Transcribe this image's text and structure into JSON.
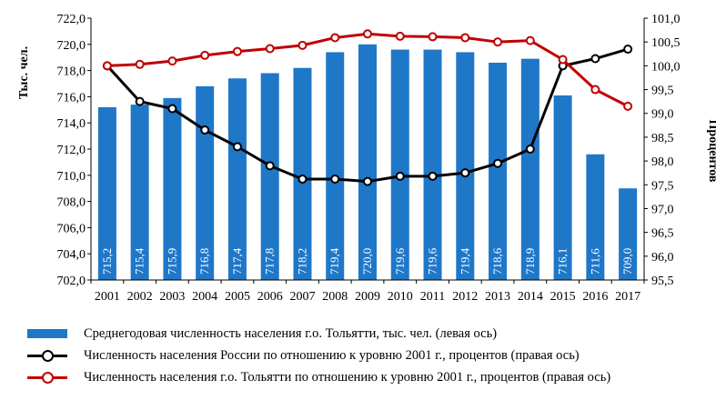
{
  "chart_data": {
    "type": "bar+line",
    "categories": [
      "2001",
      "2002",
      "2003",
      "2004",
      "2005",
      "2006",
      "2007",
      "2008",
      "2009",
      "2010",
      "2011",
      "2012",
      "2013",
      "2014",
      "2015",
      "2016",
      "2017"
    ],
    "bar_series": {
      "name": "Среднегодовая численность населения г.о. Тольятти, тыс. чел. (левая ось)",
      "values": [
        715.2,
        715.4,
        715.9,
        716.8,
        717.4,
        717.8,
        718.2,
        719.4,
        720.0,
        719.6,
        719.6,
        719.4,
        718.6,
        718.9,
        716.1,
        711.6,
        709.0
      ],
      "labels": [
        "715,2",
        "715,4",
        "715,9",
        "716,8",
        "717,4",
        "717,8",
        "718,2",
        "719,4",
        "720,0",
        "719,6",
        "719,6",
        "719,4",
        "718,6",
        "718,9",
        "716,1",
        "711,6",
        "709,0"
      ],
      "color": "#1f77c8"
    },
    "line_series": [
      {
        "name": "Численность населения России по отношению к уровню 2001 г., процентов (правая ось)",
        "values": [
          100.0,
          99.25,
          99.1,
          98.65,
          98.3,
          97.9,
          97.62,
          97.62,
          97.57,
          97.68,
          97.68,
          97.75,
          97.95,
          98.25,
          100.0,
          100.15,
          100.35
        ],
        "color": "#000000"
      },
      {
        "name": "Численность населения г.о. Тольятти по отношению к уровню 2001 г., процентов (правая ось)",
        "values": [
          100.0,
          100.03,
          100.1,
          100.22,
          100.3,
          100.36,
          100.43,
          100.59,
          100.67,
          100.62,
          100.61,
          100.59,
          100.5,
          100.53,
          100.13,
          99.5,
          99.15
        ],
        "color": "#c00000"
      }
    ],
    "left_axis": {
      "title": "Тыс. чел.",
      "ylim": [
        702.0,
        722.0
      ],
      "ticks": [
        "702,0",
        "704,0",
        "706,0",
        "708,0",
        "710,0",
        "712,0",
        "714,0",
        "716,0",
        "718,0",
        "720,0",
        "722,0"
      ]
    },
    "right_axis": {
      "title": "Процентов",
      "ylim": [
        95.5,
        101.0
      ],
      "ticks": [
        "95,5",
        "96,0",
        "96,5",
        "97,0",
        "97,5",
        "98,0",
        "98,5",
        "99,0",
        "99,5",
        "100,0",
        "100,5",
        "101,0"
      ]
    },
    "grid": false,
    "legend_placement": "bottom"
  }
}
